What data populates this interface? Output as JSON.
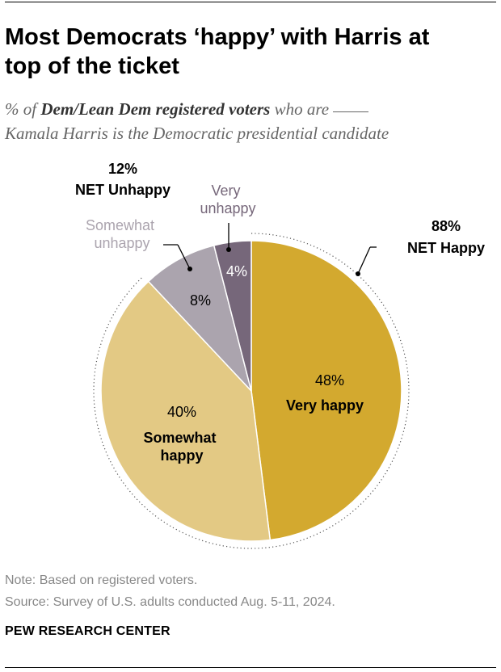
{
  "header": {
    "title_line1": "Most Democrats ‘happy’ with Harris at",
    "title_line2": "top of the ticket",
    "subtitle_prefix": "% of ",
    "subtitle_bold": "Dem/Lean Dem registered voters",
    "subtitle_suffix": " who are",
    "subtitle_line2": "Kamala Harris is the Democratic presidential candidate"
  },
  "chart_data": {
    "type": "pie",
    "slices": [
      {
        "label": "Very happy",
        "value": 48,
        "value_label": "48%",
        "color": "#d3a92f"
      },
      {
        "label": "Somewhat happy",
        "value": 40,
        "value_label": "40%",
        "color": "#e3c984"
      },
      {
        "label": "Somewhat unhappy",
        "value": 8,
        "value_label": "8%",
        "color": "#aba4ae"
      },
      {
        "label": "Very unhappy",
        "value": 4,
        "value_label": "4%",
        "color": "#76677a"
      }
    ],
    "net_happy": {
      "value_label": "88%",
      "label": "NET Happy",
      "value": 88
    },
    "net_unhappy": {
      "value_label": "12%",
      "label": "NET Unhappy",
      "value": 12
    }
  },
  "footer": {
    "note": "Note: Based on registered voters.",
    "source": "Source: Survey of U.S. adults conducted Aug. 5-11, 2024.",
    "brand": "PEW RESEARCH CENTER"
  }
}
